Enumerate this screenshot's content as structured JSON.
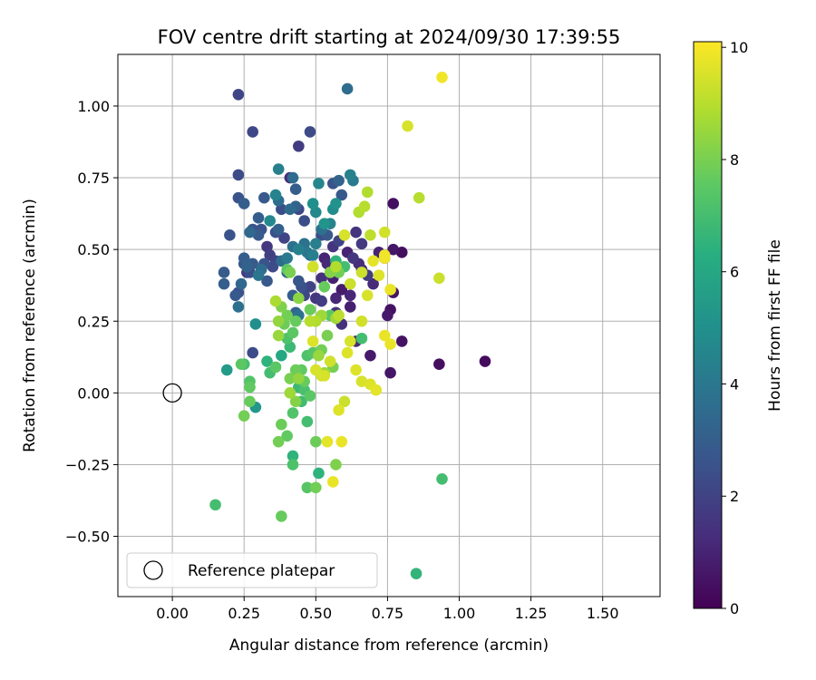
{
  "chart_data": {
    "type": "scatter",
    "title": "FOV centre drift starting at 2024/09/30 17:39:55",
    "xlabel": "Angular distance from reference (arcmin)",
    "ylabel": "Rotation from reference (arcmin)",
    "xlim": [
      -0.19,
      1.7
    ],
    "ylim": [
      -0.71,
      1.18
    ],
    "xticks": [
      0.0,
      0.25,
      0.5,
      0.75,
      1.0,
      1.25,
      1.5
    ],
    "xtick_labels": [
      "0.00",
      "0.25",
      "0.50",
      "0.75",
      "1.00",
      "1.25",
      "1.50"
    ],
    "yticks": [
      -0.5,
      -0.25,
      0.0,
      0.25,
      0.5,
      0.75,
      1.0
    ],
    "ytick_labels": [
      "−0.50",
      "−0.25",
      "0.00",
      "0.25",
      "0.50",
      "0.75",
      "1.00"
    ],
    "grid": true,
    "colormap": "viridis",
    "colorbar": {
      "label": "Hours from first FF file",
      "min": 0,
      "max": 10.1,
      "ticks": [
        0,
        2,
        4,
        6,
        8,
        10
      ],
      "tick_labels": [
        "0",
        "2",
        "4",
        "6",
        "8",
        "10"
      ]
    },
    "legend": {
      "placement": "lower-left",
      "entries": [
        "Reference platepar"
      ]
    },
    "reference_point": {
      "x": 0.0,
      "y": 0.0
    },
    "points": [
      {
        "x": 0.49,
        "y": 0.18,
        "h": 9.6
      },
      {
        "x": 0.5,
        "y": 0.08,
        "h": 9.5
      },
      {
        "x": 0.55,
        "y": 0.11,
        "h": 9.4
      },
      {
        "x": 0.62,
        "y": 0.18,
        "h": 9.5
      },
      {
        "x": 0.64,
        "y": 0.08,
        "h": 9.6
      },
      {
        "x": 0.66,
        "y": 0.04,
        "h": 9.5
      },
      {
        "x": 0.69,
        "y": 0.03,
        "h": 9.6
      },
      {
        "x": 0.71,
        "y": 0.01,
        "h": 9.7
      },
      {
        "x": 0.74,
        "y": 0.2,
        "h": 9.8
      },
      {
        "x": 0.76,
        "y": 0.17,
        "h": 9.8
      },
      {
        "x": 0.52,
        "y": 0.06,
        "h": 9.4
      },
      {
        "x": 0.58,
        "y": -0.06,
        "h": 9.6
      },
      {
        "x": 0.6,
        "y": -0.03,
        "h": 9.3
      },
      {
        "x": 0.54,
        "y": -0.17,
        "h": 9.7
      },
      {
        "x": 0.59,
        "y": -0.17,
        "h": 9.8
      },
      {
        "x": 0.56,
        "y": -0.31,
        "h": 9.8
      },
      {
        "x": 0.61,
        "y": 0.14,
        "h": 9.6
      },
      {
        "x": 0.66,
        "y": 0.25,
        "h": 9.4
      },
      {
        "x": 0.68,
        "y": 0.34,
        "h": 9.5
      },
      {
        "x": 0.72,
        "y": 0.41,
        "h": 9.6
      },
      {
        "x": 0.76,
        "y": 0.36,
        "h": 9.8
      },
      {
        "x": 0.7,
        "y": 0.46,
        "h": 9.7
      },
      {
        "x": 0.74,
        "y": 0.47,
        "h": 9.9
      },
      {
        "x": 0.69,
        "y": 0.55,
        "h": 9.1
      },
      {
        "x": 0.65,
        "y": 0.63,
        "h": 8.9
      },
      {
        "x": 0.67,
        "y": 0.65,
        "h": 9.0
      },
      {
        "x": 0.68,
        "y": 0.7,
        "h": 8.9
      },
      {
        "x": 0.74,
        "y": 0.56,
        "h": 9.4
      },
      {
        "x": 0.6,
        "y": 0.55,
        "h": 9.5
      },
      {
        "x": 0.62,
        "y": 0.38,
        "h": 9.3
      },
      {
        "x": 0.57,
        "y": 0.44,
        "h": 8.9
      },
      {
        "x": 0.49,
        "y": 0.44,
        "h": 9.4
      },
      {
        "x": 0.58,
        "y": 0.27,
        "h": 9.1
      },
      {
        "x": 0.53,
        "y": 0.06,
        "h": 9.5
      },
      {
        "x": 0.66,
        "y": 0.42,
        "h": 9.3
      },
      {
        "x": 0.82,
        "y": 0.93,
        "h": 9.5
      },
      {
        "x": 0.94,
        "y": 1.1,
        "h": 9.9
      },
      {
        "x": 0.86,
        "y": 0.68,
        "h": 9.0
      },
      {
        "x": 0.93,
        "y": 0.4,
        "h": 9.3
      },
      {
        "x": 0.74,
        "y": 0.48,
        "h": 9.9
      },
      {
        "x": 0.48,
        "y": 0.25,
        "h": 9.0
      },
      {
        "x": 0.28,
        "y": 0.14,
        "h": 2.3
      },
      {
        "x": 0.29,
        "y": 0.24,
        "h": 5.0
      },
      {
        "x": 0.25,
        "y": 0.1,
        "h": 7.0
      },
      {
        "x": 0.24,
        "y": 0.1,
        "h": 7.5
      },
      {
        "x": 0.27,
        "y": 0.04,
        "h": 7.3
      },
      {
        "x": 0.27,
        "y": 0.02,
        "h": 7.6
      },
      {
        "x": 0.29,
        "y": -0.05,
        "h": 5.3
      },
      {
        "x": 0.27,
        "y": -0.03,
        "h": 7.7
      },
      {
        "x": 0.25,
        "y": -0.08,
        "h": 7.9
      },
      {
        "x": 0.15,
        "y": -0.39,
        "h": 7.0
      },
      {
        "x": 0.38,
        "y": -0.43,
        "h": 7.7
      },
      {
        "x": 0.37,
        "y": -0.17,
        "h": 7.9
      },
      {
        "x": 0.38,
        "y": -0.11,
        "h": 7.8
      },
      {
        "x": 0.4,
        "y": -0.15,
        "h": 7.6
      },
      {
        "x": 0.42,
        "y": -0.22,
        "h": 6.5
      },
      {
        "x": 0.42,
        "y": -0.25,
        "h": 7.2
      },
      {
        "x": 0.47,
        "y": -0.33,
        "h": 7.4
      },
      {
        "x": 0.5,
        "y": -0.33,
        "h": 7.9
      },
      {
        "x": 0.51,
        "y": -0.28,
        "h": 6.5
      },
      {
        "x": 0.5,
        "y": -0.17,
        "h": 7.8
      },
      {
        "x": 0.47,
        "y": -0.1,
        "h": 7.0
      },
      {
        "x": 0.42,
        "y": -0.07,
        "h": 7.3
      },
      {
        "x": 0.43,
        "y": -0.03,
        "h": 8.2
      },
      {
        "x": 0.44,
        "y": 0.02,
        "h": 6.8
      },
      {
        "x": 0.45,
        "y": -0.03,
        "h": 6.9
      },
      {
        "x": 0.46,
        "y": 0.01,
        "h": 7.1
      },
      {
        "x": 0.48,
        "y": -0.01,
        "h": 7.5
      },
      {
        "x": 0.41,
        "y": 0.0,
        "h": 8.6
      },
      {
        "x": 0.41,
        "y": 0.05,
        "h": 8.0
      },
      {
        "x": 0.43,
        "y": 0.08,
        "h": 7.8
      },
      {
        "x": 0.45,
        "y": 0.08,
        "h": 7.6
      },
      {
        "x": 0.47,
        "y": 0.13,
        "h": 7.2
      },
      {
        "x": 0.49,
        "y": 0.14,
        "h": 7.4
      },
      {
        "x": 0.51,
        "y": 0.13,
        "h": 8.5
      },
      {
        "x": 0.52,
        "y": 0.15,
        "h": 7.9
      },
      {
        "x": 0.56,
        "y": 0.09,
        "h": 8.0
      },
      {
        "x": 0.53,
        "y": 0.07,
        "h": 8.6
      },
      {
        "x": 0.36,
        "y": 0.09,
        "h": 7.5
      },
      {
        "x": 0.34,
        "y": 0.07,
        "h": 7.0
      },
      {
        "x": 0.33,
        "y": 0.11,
        "h": 6.5
      },
      {
        "x": 0.38,
        "y": 0.13,
        "h": 6.0
      },
      {
        "x": 0.37,
        "y": 0.2,
        "h": 8.5
      },
      {
        "x": 0.39,
        "y": 0.24,
        "h": 7.8
      },
      {
        "x": 0.4,
        "y": 0.19,
        "h": 7.2
      },
      {
        "x": 0.41,
        "y": 0.16,
        "h": 6.8
      },
      {
        "x": 0.42,
        "y": 0.21,
        "h": 7.5
      },
      {
        "x": 0.37,
        "y": 0.25,
        "h": 8.4
      },
      {
        "x": 0.36,
        "y": 0.32,
        "h": 8.8
      },
      {
        "x": 0.38,
        "y": 0.3,
        "h": 8.1
      },
      {
        "x": 0.4,
        "y": 0.27,
        "h": 7.9
      },
      {
        "x": 0.43,
        "y": 0.25,
        "h": 7.7
      },
      {
        "x": 0.44,
        "y": 0.33,
        "h": 8.3
      },
      {
        "x": 0.48,
        "y": 0.29,
        "h": 7.8
      },
      {
        "x": 0.5,
        "y": 0.25,
        "h": 8.9
      },
      {
        "x": 0.52,
        "y": 0.27,
        "h": 8.6
      },
      {
        "x": 0.54,
        "y": 0.2,
        "h": 8.0
      },
      {
        "x": 0.55,
        "y": 0.27,
        "h": 7.5
      },
      {
        "x": 0.57,
        "y": 0.26,
        "h": 8.6
      },
      {
        "x": 0.53,
        "y": 0.37,
        "h": 7.7
      },
      {
        "x": 0.55,
        "y": 0.42,
        "h": 8.2
      },
      {
        "x": 0.58,
        "y": 0.42,
        "h": 7.9
      },
      {
        "x": 0.6,
        "y": 0.44,
        "h": 7.0
      },
      {
        "x": 0.57,
        "y": 0.46,
        "h": 6.5
      },
      {
        "x": 0.41,
        "y": 0.42,
        "h": 8.0
      },
      {
        "x": 0.4,
        "y": 0.43,
        "h": 7.5
      },
      {
        "x": 0.66,
        "y": 0.19,
        "h": 7.0
      },
      {
        "x": 0.94,
        "y": -0.3,
        "h": 7.0
      },
      {
        "x": 0.85,
        "y": -0.63,
        "h": 6.6
      },
      {
        "x": 0.57,
        "y": -0.25,
        "h": 8.1
      },
      {
        "x": 0.46,
        "y": 0.04,
        "h": 7.7
      },
      {
        "x": 0.44,
        "y": 0.05,
        "h": 8.4
      },
      {
        "x": 0.23,
        "y": 1.04,
        "h": 2.1
      },
      {
        "x": 0.28,
        "y": 0.91,
        "h": 2.2
      },
      {
        "x": 0.44,
        "y": 0.86,
        "h": 1.8
      },
      {
        "x": 0.48,
        "y": 0.91,
        "h": 2.3
      },
      {
        "x": 0.61,
        "y": 1.06,
        "h": 3.6
      },
      {
        "x": 0.23,
        "y": 0.76,
        "h": 2.3
      },
      {
        "x": 0.37,
        "y": 0.78,
        "h": 4.3
      },
      {
        "x": 0.41,
        "y": 0.75,
        "h": 1.3
      },
      {
        "x": 0.42,
        "y": 0.75,
        "h": 3.6
      },
      {
        "x": 0.43,
        "y": 0.71,
        "h": 3.0
      },
      {
        "x": 0.51,
        "y": 0.73,
        "h": 4.6
      },
      {
        "x": 0.56,
        "y": 0.73,
        "h": 2.6
      },
      {
        "x": 0.58,
        "y": 0.74,
        "h": 3.2
      },
      {
        "x": 0.62,
        "y": 0.76,
        "h": 4.4
      },
      {
        "x": 0.63,
        "y": 0.74,
        "h": 4.1
      },
      {
        "x": 0.23,
        "y": 0.68,
        "h": 2.6
      },
      {
        "x": 0.25,
        "y": 0.66,
        "h": 3.0
      },
      {
        "x": 0.32,
        "y": 0.68,
        "h": 2.8
      },
      {
        "x": 0.36,
        "y": 0.69,
        "h": 4.5
      },
      {
        "x": 0.37,
        "y": 0.67,
        "h": 3.6
      },
      {
        "x": 0.38,
        "y": 0.64,
        "h": 2.4
      },
      {
        "x": 0.41,
        "y": 0.64,
        "h": 3.5
      },
      {
        "x": 0.43,
        "y": 0.65,
        "h": 3.2
      },
      {
        "x": 0.44,
        "y": 0.64,
        "h": 2.2
      },
      {
        "x": 0.46,
        "y": 0.6,
        "h": 2.4
      },
      {
        "x": 0.49,
        "y": 0.66,
        "h": 5.0
      },
      {
        "x": 0.5,
        "y": 0.63,
        "h": 4.7
      },
      {
        "x": 0.52,
        "y": 0.57,
        "h": 3.8
      },
      {
        "x": 0.53,
        "y": 0.59,
        "h": 5.2
      },
      {
        "x": 0.56,
        "y": 0.64,
        "h": 4.9
      },
      {
        "x": 0.57,
        "y": 0.66,
        "h": 5.1
      },
      {
        "x": 0.59,
        "y": 0.69,
        "h": 2.8
      },
      {
        "x": 0.64,
        "y": 0.56,
        "h": 1.5
      },
      {
        "x": 0.66,
        "y": 0.52,
        "h": 1.7
      },
      {
        "x": 0.3,
        "y": 0.61,
        "h": 3.0
      },
      {
        "x": 0.28,
        "y": 0.57,
        "h": 2.7
      },
      {
        "x": 0.27,
        "y": 0.56,
        "h": 3.4
      },
      {
        "x": 0.3,
        "y": 0.55,
        "h": 2.9
      },
      {
        "x": 0.31,
        "y": 0.57,
        "h": 2.6
      },
      {
        "x": 0.34,
        "y": 0.6,
        "h": 4.7
      },
      {
        "x": 0.36,
        "y": 0.56,
        "h": 2.5
      },
      {
        "x": 0.37,
        "y": 0.57,
        "h": 3.1
      },
      {
        "x": 0.39,
        "y": 0.54,
        "h": 2.0
      },
      {
        "x": 0.42,
        "y": 0.51,
        "h": 3.7
      },
      {
        "x": 0.44,
        "y": 0.5,
        "h": 4.4
      },
      {
        "x": 0.46,
        "y": 0.52,
        "h": 3.8
      },
      {
        "x": 0.47,
        "y": 0.49,
        "h": 4.0
      },
      {
        "x": 0.48,
        "y": 0.48,
        "h": 3.6
      },
      {
        "x": 0.5,
        "y": 0.52,
        "h": 4.3
      },
      {
        "x": 0.52,
        "y": 0.55,
        "h": 2.4
      },
      {
        "x": 0.54,
        "y": 0.55,
        "h": 2.8
      },
      {
        "x": 0.56,
        "y": 0.51,
        "h": 1.5
      },
      {
        "x": 0.58,
        "y": 0.53,
        "h": 2.0
      },
      {
        "x": 0.61,
        "y": 0.49,
        "h": 1.0
      },
      {
        "x": 0.63,
        "y": 0.47,
        "h": 1.6
      },
      {
        "x": 0.65,
        "y": 0.45,
        "h": 1.3
      },
      {
        "x": 0.66,
        "y": 0.43,
        "h": 1.1
      },
      {
        "x": 0.68,
        "y": 0.41,
        "h": 1.8
      },
      {
        "x": 0.7,
        "y": 0.38,
        "h": 1.2
      },
      {
        "x": 0.72,
        "y": 0.49,
        "h": 1.0
      },
      {
        "x": 0.74,
        "y": 0.47,
        "h": 0.8
      },
      {
        "x": 0.77,
        "y": 0.5,
        "h": 0.6
      },
      {
        "x": 0.8,
        "y": 0.49,
        "h": 0.4
      },
      {
        "x": 0.77,
        "y": 0.66,
        "h": 0.4
      },
      {
        "x": 0.77,
        "y": 0.35,
        "h": 0.6
      },
      {
        "x": 0.76,
        "y": 0.29,
        "h": 0.5
      },
      {
        "x": 0.75,
        "y": 0.27,
        "h": 0.7
      },
      {
        "x": 0.8,
        "y": 0.18,
        "h": 0.5
      },
      {
        "x": 0.76,
        "y": 0.07,
        "h": 0.6
      },
      {
        "x": 0.93,
        "y": 0.1,
        "h": 0.4
      },
      {
        "x": 1.09,
        "y": 0.11,
        "h": 0.3
      },
      {
        "x": 0.69,
        "y": 0.13,
        "h": 0.7
      },
      {
        "x": 0.64,
        "y": 0.18,
        "h": 1.2
      },
      {
        "x": 0.59,
        "y": 0.24,
        "h": 1.4
      },
      {
        "x": 0.57,
        "y": 0.28,
        "h": 1.5
      },
      {
        "x": 0.57,
        "y": 0.33,
        "h": 1.1
      },
      {
        "x": 0.56,
        "y": 0.4,
        "h": 0.9
      },
      {
        "x": 0.54,
        "y": 0.45,
        "h": 1.2
      },
      {
        "x": 0.52,
        "y": 0.4,
        "h": 1.4
      },
      {
        "x": 0.5,
        "y": 0.33,
        "h": 1.6
      },
      {
        "x": 0.52,
        "y": 0.32,
        "h": 1.8
      },
      {
        "x": 0.48,
        "y": 0.37,
        "h": 2.0
      },
      {
        "x": 0.46,
        "y": 0.34,
        "h": 2.2
      },
      {
        "x": 0.45,
        "y": 0.37,
        "h": 2.5
      },
      {
        "x": 0.44,
        "y": 0.39,
        "h": 2.7
      },
      {
        "x": 0.42,
        "y": 0.34,
        "h": 3.0
      },
      {
        "x": 0.43,
        "y": 0.28,
        "h": 3.2
      },
      {
        "x": 0.4,
        "y": 0.42,
        "h": 3.3
      },
      {
        "x": 0.38,
        "y": 0.46,
        "h": 3.5
      },
      {
        "x": 0.36,
        "y": 0.46,
        "h": 2.0
      },
      {
        "x": 0.35,
        "y": 0.44,
        "h": 2.3
      },
      {
        "x": 0.34,
        "y": 0.48,
        "h": 1.9
      },
      {
        "x": 0.33,
        "y": 0.51,
        "h": 1.6
      },
      {
        "x": 0.32,
        "y": 0.45,
        "h": 2.6
      },
      {
        "x": 0.33,
        "y": 0.39,
        "h": 2.8
      },
      {
        "x": 0.31,
        "y": 0.43,
        "h": 3.6
      },
      {
        "x": 0.3,
        "y": 0.41,
        "h": 3.9
      },
      {
        "x": 0.28,
        "y": 0.45,
        "h": 2.9
      },
      {
        "x": 0.27,
        "y": 0.42,
        "h": 2.4
      },
      {
        "x": 0.26,
        "y": 0.44,
        "h": 3.2
      },
      {
        "x": 0.25,
        "y": 0.47,
        "h": 3.0
      },
      {
        "x": 0.25,
        "y": 0.45,
        "h": 2.7
      },
      {
        "x": 0.24,
        "y": 0.38,
        "h": 3.4
      },
      {
        "x": 0.23,
        "y": 0.35,
        "h": 2.5
      },
      {
        "x": 0.22,
        "y": 0.34,
        "h": 2.8
      },
      {
        "x": 0.23,
        "y": 0.3,
        "h": 3.7
      },
      {
        "x": 0.18,
        "y": 0.42,
        "h": 2.9
      },
      {
        "x": 0.18,
        "y": 0.38,
        "h": 3.0
      },
      {
        "x": 0.2,
        "y": 0.55,
        "h": 2.6
      },
      {
        "x": 0.26,
        "y": 0.42,
        "h": 1.8
      },
      {
        "x": 0.19,
        "y": 0.08,
        "h": 5.5
      },
      {
        "x": 0.44,
        "y": 0.27,
        "h": 3.8
      },
      {
        "x": 0.4,
        "y": 0.47,
        "h": 4.1
      },
      {
        "x": 0.49,
        "y": 0.48,
        "h": 4.3
      },
      {
        "x": 0.55,
        "y": 0.59,
        "h": 4.5
      },
      {
        "x": 0.53,
        "y": 0.47,
        "h": 1.0
      },
      {
        "x": 0.59,
        "y": 0.36,
        "h": 0.8
      },
      {
        "x": 0.62,
        "y": 0.3,
        "h": 0.9
      },
      {
        "x": 0.62,
        "y": 0.34,
        "h": 1.1
      }
    ]
  }
}
